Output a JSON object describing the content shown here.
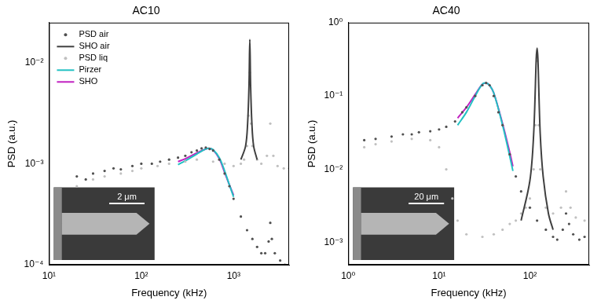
{
  "chart_data": [
    {
      "type": "scatter",
      "title": "AC10",
      "x_label": "Frequency (kHz)",
      "y_label": "PSD (a.u.)",
      "log": true,
      "grid": false,
      "legend": "upper left",
      "inset_scale_bar": "2 μm",
      "xlim": [
        10,
        4000
      ],
      "ylim": [
        0.0001,
        0.025
      ],
      "xticks": [
        {
          "value": 10,
          "label": "10¹"
        },
        {
          "value": 100,
          "label": "10²"
        },
        {
          "value": 1000,
          "label": "10³"
        }
      ],
      "yticks": [
        {
          "value": 0.0001,
          "label": "10⁻⁴"
        },
        {
          "value": 0.001,
          "label": "10⁻³"
        },
        {
          "value": 0.01,
          "label": "10⁻²"
        }
      ],
      "series": [
        {
          "name": "PSD air",
          "type": "scatter",
          "marker": "circle",
          "color": "#505050",
          "x": [
            20,
            25,
            30,
            40,
            50,
            60,
            80,
            100,
            130,
            160,
            200,
            250,
            300,
            350,
            400,
            450,
            500,
            550,
            600,
            700,
            800,
            900,
            1000,
            1200,
            1400,
            1600,
            1800,
            2000,
            2200,
            2400,
            2500,
            2600,
            2800,
            3200,
            3600,
            4000
          ],
          "values": [
            0.00075,
            0.0007,
            0.0008,
            0.00085,
            0.0009,
            0.00088,
            0.00095,
            0.001,
            0.001,
            0.00105,
            0.0011,
            0.00115,
            0.0012,
            0.0013,
            0.00135,
            0.00142,
            0.00145,
            0.0014,
            0.00135,
            0.0011,
            0.0008,
            0.0006,
            0.00045,
            0.0003,
            0.00022,
            0.00018,
            0.00015,
            0.00013,
            0.00013,
            0.00017,
            0.00026,
            0.00018,
            0.00013,
            0.00011,
            0.0001,
            0.0001
          ]
        },
        {
          "name": "SHO air",
          "type": "line",
          "line_style": "solid",
          "color": "#404040",
          "x": [
            1200,
            1350,
            1420,
            1470,
            1500,
            1530,
            1580,
            1650,
            1800
          ],
          "values": [
            0.0011,
            0.0015,
            0.0025,
            0.006,
            0.017,
            0.006,
            0.0025,
            0.0015,
            0.0011
          ]
        },
        {
          "name": "PSD liq",
          "type": "scatter",
          "marker": "circle",
          "color": "#c0c0c0",
          "x": [
            20,
            30,
            40,
            60,
            80,
            100,
            150,
            200,
            300,
            400,
            600,
            800,
            1000,
            1200,
            1300,
            1400,
            1450,
            1500,
            1550,
            1600,
            1800,
            2000,
            2300,
            2500,
            2700,
            3000,
            3500,
            4000
          ],
          "values": [
            0.0006,
            0.0007,
            0.00075,
            0.0008,
            0.00085,
            0.0009,
            0.00095,
            0.001,
            0.00105,
            0.0011,
            0.00105,
            0.001,
            0.00095,
            0.001,
            0.0011,
            0.0015,
            0.003,
            0.008,
            0.0025,
            0.0015,
            0.0011,
            0.001,
            0.0012,
            0.0025,
            0.0012,
            0.00095,
            0.0009,
            0.0009
          ]
        },
        {
          "name": "Pirzer",
          "type": "line",
          "line_style": "solid",
          "color": "#22c1c3",
          "x": [
            250,
            300,
            400,
            500,
            550,
            600,
            700,
            800,
            900,
            1000
          ],
          "values": [
            0.00098,
            0.00107,
            0.00125,
            0.0014,
            0.00142,
            0.00138,
            0.00115,
            0.00085,
            0.00062,
            0.00047
          ]
        },
        {
          "name": "SHO",
          "type": "line",
          "line_style": "solid",
          "color": "#c020c0",
          "x": [
            250,
            300,
            400,
            500,
            550,
            600,
            700,
            800,
            900,
            1000
          ],
          "values": [
            0.00105,
            0.00112,
            0.00128,
            0.0014,
            0.00142,
            0.00137,
            0.00112,
            0.00082,
            0.00062,
            0.00049
          ]
        }
      ]
    },
    {
      "type": "scatter",
      "title": "AC40",
      "x_label": "Frequency (kHz)",
      "y_label": "PSD (a.u.)",
      "log": true,
      "grid": false,
      "inset_scale_bar": "20 μm",
      "xlim": [
        1,
        450
      ],
      "ylim": [
        0.0005,
        1
      ],
      "xticks": [
        {
          "value": 1,
          "label": "10⁰"
        },
        {
          "value": 10,
          "label": "10¹"
        },
        {
          "value": 100,
          "label": "10²"
        }
      ],
      "yticks": [
        {
          "value": 0.001,
          "label": "10⁻³"
        },
        {
          "value": 0.01,
          "label": "10⁻²"
        },
        {
          "value": 0.1,
          "label": "10⁻¹"
        },
        {
          "value": 1,
          "label": "10⁰"
        }
      ],
      "series": [
        {
          "name": "PSD air",
          "type": "scatter",
          "marker": "circle",
          "color": "#505050",
          "x": [
            1.5,
            2,
            3,
            4,
            5,
            6,
            8,
            10,
            12,
            15,
            18,
            20,
            25,
            30,
            33,
            36,
            40,
            45,
            50,
            60,
            70,
            80,
            100,
            120,
            150,
            180,
            200,
            230,
            250,
            270,
            300,
            350,
            400
          ],
          "values": [
            0.025,
            0.026,
            0.028,
            0.03,
            0.03,
            0.032,
            0.033,
            0.035,
            0.038,
            0.045,
            0.06,
            0.07,
            0.1,
            0.14,
            0.15,
            0.14,
            0.1,
            0.06,
            0.04,
            0.016,
            0.008,
            0.005,
            0.003,
            0.002,
            0.0015,
            0.0012,
            0.0011,
            0.0015,
            0.0025,
            0.0018,
            0.0013,
            0.0011,
            0.0012
          ]
        },
        {
          "name": "SHO air",
          "type": "line",
          "line_style": "solid",
          "color": "#404040",
          "x": [
            80,
            100,
            110,
            120,
            130,
            140,
            160,
            180
          ],
          "values": [
            0.002,
            0.007,
            0.03,
            0.45,
            0.03,
            0.008,
            0.0025,
            0.0015
          ]
        },
        {
          "name": "PSD liq",
          "type": "scatter",
          "marker": "circle",
          "color": "#c0c0c0",
          "x": [
            1.5,
            2,
            3,
            5,
            8,
            10,
            12,
            14,
            16,
            20,
            30,
            40,
            50,
            60,
            70,
            80,
            90,
            100,
            110,
            115,
            120,
            125,
            130,
            150,
            180,
            220,
            250,
            280,
            320,
            400
          ],
          "values": [
            0.02,
            0.022,
            0.024,
            0.026,
            0.025,
            0.02,
            0.01,
            0.004,
            0.002,
            0.0013,
            0.0012,
            0.0013,
            0.0015,
            0.0018,
            0.002,
            0.0025,
            0.003,
            0.004,
            0.01,
            0.04,
            0.3,
            0.04,
            0.01,
            0.003,
            0.0025,
            0.003,
            0.005,
            0.003,
            0.0022,
            0.002
          ]
        },
        {
          "name": "Pirzer",
          "type": "line",
          "line_style": "solid",
          "color": "#22c1c3",
          "x": [
            16,
            20,
            25,
            30,
            33,
            36,
            40,
            50,
            60,
            65
          ],
          "values": [
            0.04,
            0.06,
            0.1,
            0.145,
            0.15,
            0.14,
            0.11,
            0.04,
            0.015,
            0.0095
          ]
        },
        {
          "name": "SHO",
          "type": "line",
          "line_style": "solid",
          "color": "#c020c0",
          "x": [
            16,
            20,
            25,
            30,
            33,
            36,
            40,
            50,
            60,
            65
          ],
          "values": [
            0.05,
            0.07,
            0.105,
            0.145,
            0.15,
            0.14,
            0.11,
            0.042,
            0.017,
            0.011
          ]
        }
      ]
    }
  ]
}
